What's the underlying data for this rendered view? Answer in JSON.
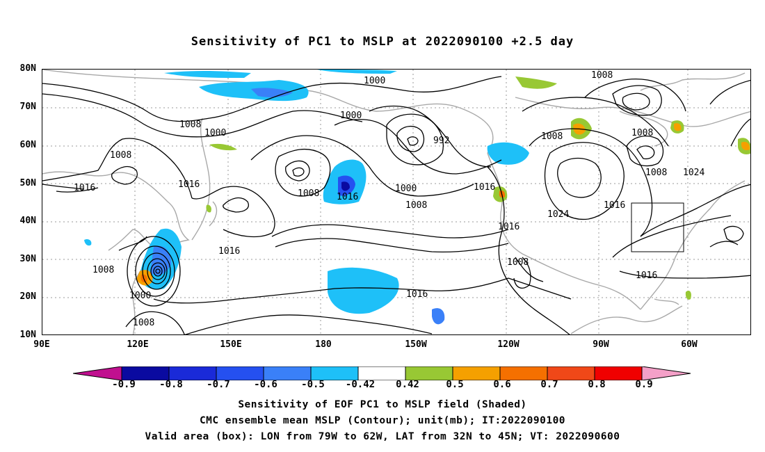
{
  "title": "Sensitivity of PC1 to MSLP at 2022090100 +2.5 day",
  "map": {
    "lat_labels": [
      "80N",
      "70N",
      "60N",
      "50N",
      "40N",
      "30N",
      "20N",
      "10N"
    ],
    "lon_labels": [
      "90E",
      "120E",
      "150E",
      "180",
      "150W",
      "120W",
      "90W",
      "60W"
    ],
    "contour_labels": [
      "1000",
      "1008",
      "1000",
      "1008",
      "1000",
      "1008",
      "1016",
      "1008",
      "1016",
      "992",
      "1000",
      "1008",
      "1016",
      "1016",
      "1008",
      "1024",
      "1008",
      "1024",
      "1016",
      "1016",
      "1008",
      "1008",
      "1000",
      "1008",
      "1016",
      "1016",
      "1016",
      "1008",
      "1016"
    ],
    "valid_box": {
      "lon_west": "79W",
      "lon_east": "62W",
      "lat_south": "32N",
      "lat_north": "45N"
    }
  },
  "colorbar": {
    "labels": [
      "-0.9",
      "-0.8",
      "-0.7",
      "-0.6",
      "-0.5",
      "-0.42",
      "0.42",
      "0.5",
      "0.6",
      "0.7",
      "0.8",
      "0.9"
    ],
    "low_end_color": "#c0108f",
    "high_end_color": "#f4a0c8",
    "colors": [
      "#0a0aa0",
      "#1a2ad8",
      "#2550f0",
      "#3a80f8",
      "#1ec0f8",
      "#ffffff",
      "#98c834",
      "#f5a000",
      "#f57000",
      "#f04818",
      "#f00000"
    ]
  },
  "caption": {
    "line1": "Sensitivity of EOF PC1 to MSLP field (Shaded)",
    "line2": "CMC ensemble mean MSLP (Contour); unit(mb); IT:2022090100",
    "line3": "Valid area (box): LON from 79W to 62W, LAT from 32N to 45N; VT: 2022090600"
  }
}
